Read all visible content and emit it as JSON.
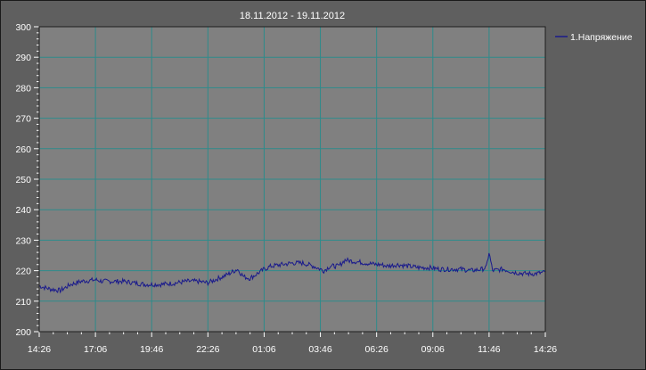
{
  "chart_data": {
    "type": "line",
    "title": "18.11.2012 - 19.11.2012",
    "xlabel": "",
    "ylabel": "",
    "ylim": [
      200,
      300
    ],
    "yticks": [
      200,
      210,
      220,
      230,
      240,
      250,
      260,
      270,
      280,
      290,
      300
    ],
    "xticks": [
      "14:26",
      "17:06",
      "19:46",
      "22:26",
      "01:06",
      "03:46",
      "06:26",
      "09:06",
      "11:46",
      "14:26"
    ],
    "grid": true,
    "legend_position": "top-right",
    "colors": {
      "plot_bg": "#808080",
      "grid": "#2e8b8b",
      "series": "#1a1a8c",
      "page_bg": "#5f5f5f"
    },
    "series": [
      {
        "name": "1.Напряжение",
        "x_hours": [
          0,
          0.5,
          1.0,
          1.5,
          2.0,
          2.67,
          3.0,
          3.5,
          4.0,
          4.5,
          5.0,
          5.33,
          5.8,
          6.5,
          7.0,
          7.5,
          8.0,
          8.5,
          8.7,
          9.0,
          9.4,
          9.7,
          10.0,
          10.67,
          11.0,
          11.5,
          12.0,
          12.5,
          13.0,
          13.33,
          13.5,
          13.8,
          14.2,
          14.5,
          15.0,
          15.5,
          16.0,
          16.2,
          16.5,
          17.0,
          17.5,
          18.0,
          18.5,
          19.0,
          19.5,
          20.0,
          20.5,
          21.0,
          21.2,
          21.33,
          21.5,
          22.0,
          22.5,
          23.0,
          23.5,
          24.0
        ],
        "values": [
          215,
          214,
          213.5,
          215.5,
          216.5,
          217,
          216.5,
          216.5,
          216.5,
          216,
          215.5,
          215.5,
          215.5,
          216,
          216.5,
          216.5,
          216,
          217.5,
          218,
          219,
          220.5,
          218,
          217.5,
          220.5,
          221.5,
          222,
          222.5,
          222.5,
          221.5,
          220.5,
          220,
          221.5,
          221.5,
          223.5,
          223,
          222.5,
          222,
          222,
          221.5,
          222,
          221.5,
          221,
          221,
          220.5,
          220.5,
          220.5,
          220,
          220.5,
          221,
          226,
          220,
          220.5,
          219.5,
          219,
          219,
          219.5
        ]
      }
    ]
  }
}
